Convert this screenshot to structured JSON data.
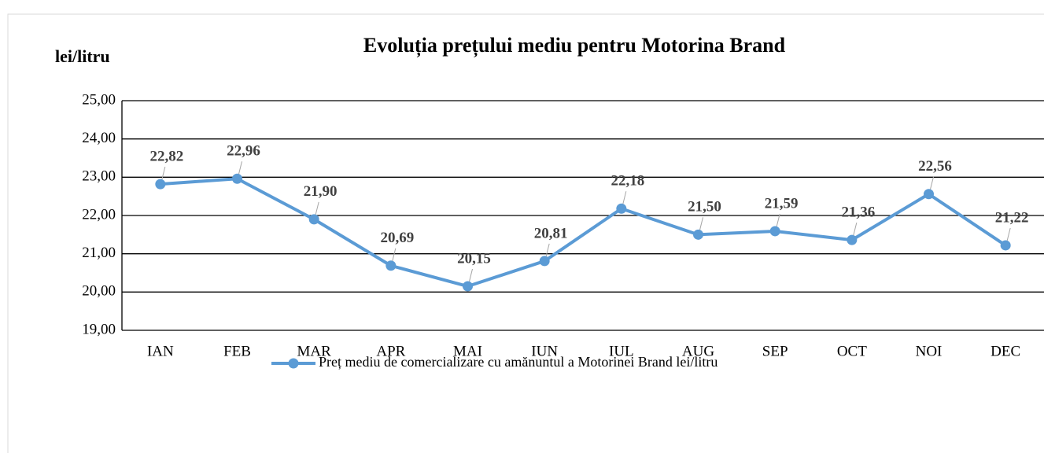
{
  "chart_data": {
    "type": "line",
    "title": "Evoluția prețului mediu pentru Motorina Brand",
    "y_label": "lei/litru",
    "categories": [
      "IAN",
      "FEB",
      "MAR",
      "APR",
      "MAI",
      "IUN",
      "IUL",
      "AUG",
      "SEP",
      "OCT",
      "NOI",
      "DEC"
    ],
    "series": [
      {
        "name": "Preț mediu de comercializare cu amănuntul a Motorinei Brand lei/litru",
        "color": "#5b9bd5",
        "values": [
          22.82,
          22.96,
          21.9,
          20.69,
          20.15,
          20.81,
          22.18,
          21.5,
          21.59,
          21.36,
          22.56,
          21.22
        ],
        "value_labels": [
          "22,82",
          "22,96",
          "21,90",
          "20,69",
          "20,15",
          "20,81",
          "22,18",
          "21,50",
          "21,59",
          "21,36",
          "22,56",
          "21,22"
        ]
      }
    ],
    "ylim": [
      19,
      25
    ],
    "yticks": [
      {
        "value": 19,
        "label": "19,00"
      },
      {
        "value": 20,
        "label": "20,00"
      },
      {
        "value": 21,
        "label": "21,00"
      },
      {
        "value": 22,
        "label": "22,00"
      },
      {
        "value": 23,
        "label": "23,00"
      },
      {
        "value": 24,
        "label": "24,00"
      },
      {
        "value": 25,
        "label": "25,00"
      }
    ],
    "grid": true,
    "legend": "bottom"
  }
}
